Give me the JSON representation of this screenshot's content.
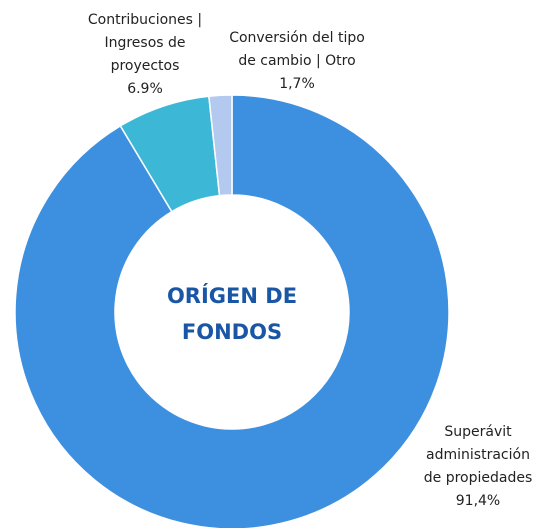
{
  "chart_data": {
    "type": "donut",
    "title": [
      "ORÍGEN DE",
      "FONDOS"
    ],
    "categories": [
      [
        "Superávit",
        "administración",
        "de propiedades"
      ],
      [
        "Contribuciones |",
        "Ingresos de",
        "proyectos"
      ],
      [
        "Conversión del tipo",
        "de cambio | Otro"
      ]
    ],
    "values": [
      91.4,
      6.9,
      1.7
    ],
    "value_labels": [
      "91,4%",
      "6.9%",
      "1,7%"
    ],
    "colors": [
      "#3d8fe0",
      "#3cb8d6",
      "#b4c9ef"
    ]
  }
}
